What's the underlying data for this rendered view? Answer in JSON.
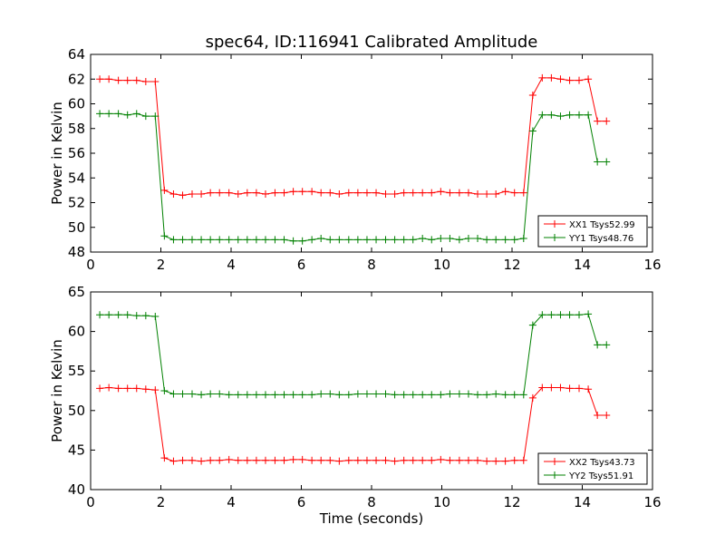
{
  "figure": {
    "title": "spec64, ID:116941 Calibrated Amplitude",
    "xlabel": "Time (seconds)"
  },
  "chart_data": [
    {
      "type": "line",
      "title": "spec64, ID:116941 Calibrated Amplitude",
      "xlabel": "",
      "ylabel": "Power in Kelvin",
      "xlim": [
        0,
        16
      ],
      "ylim": [
        48,
        64
      ],
      "xticks": [
        0,
        2,
        4,
        6,
        8,
        10,
        12,
        14,
        16
      ],
      "yticks": [
        48,
        50,
        52,
        54,
        56,
        58,
        60,
        62,
        64
      ],
      "grid": false,
      "legend_position": "lower-right",
      "x": [
        0.26,
        0.52,
        0.79,
        1.05,
        1.31,
        1.57,
        1.84,
        2.1,
        2.36,
        2.62,
        2.89,
        3.15,
        3.41,
        3.67,
        3.94,
        4.2,
        4.46,
        4.72,
        4.98,
        5.25,
        5.51,
        5.77,
        6.03,
        6.3,
        6.56,
        6.82,
        7.08,
        7.35,
        7.61,
        7.87,
        8.13,
        8.4,
        8.66,
        8.92,
        9.18,
        9.45,
        9.71,
        9.97,
        10.23,
        10.5,
        10.76,
        11.02,
        11.28,
        11.54,
        11.81,
        12.07,
        12.33,
        12.59,
        12.86,
        13.12,
        13.38,
        13.64,
        13.91,
        14.17,
        14.43,
        14.69
      ],
      "series": [
        {
          "name": "XX1 Tsys52.99",
          "color": "#ff0000",
          "values": [
            62.0,
            62.0,
            61.9,
            61.9,
            61.9,
            61.8,
            61.8,
            53.0,
            52.7,
            52.6,
            52.7,
            52.7,
            52.8,
            52.8,
            52.8,
            52.7,
            52.8,
            52.8,
            52.7,
            52.8,
            52.8,
            52.9,
            52.9,
            52.9,
            52.8,
            52.8,
            52.7,
            52.8,
            52.8,
            52.8,
            52.8,
            52.7,
            52.7,
            52.8,
            52.8,
            52.8,
            52.8,
            52.9,
            52.8,
            52.8,
            52.8,
            52.7,
            52.7,
            52.7,
            52.9,
            52.8,
            52.8,
            60.7,
            62.1,
            62.1,
            62.0,
            61.9,
            61.9,
            62.0,
            58.6,
            58.6
          ]
        },
        {
          "name": "YY1 Tsys48.76",
          "color": "#008000",
          "values": [
            59.2,
            59.2,
            59.2,
            59.1,
            59.2,
            59.0,
            59.0,
            49.3,
            49.0,
            49.0,
            49.0,
            49.0,
            49.0,
            49.0,
            49.0,
            49.0,
            49.0,
            49.0,
            49.0,
            49.0,
            49.0,
            48.9,
            48.9,
            49.0,
            49.1,
            49.0,
            49.0,
            49.0,
            49.0,
            49.0,
            49.0,
            49.0,
            49.0,
            49.0,
            49.0,
            49.1,
            49.0,
            49.1,
            49.1,
            49.0,
            49.1,
            49.1,
            49.0,
            49.0,
            49.0,
            49.0,
            49.1,
            57.8,
            59.1,
            59.1,
            59.0,
            59.1,
            59.1,
            59.1,
            55.3,
            55.3
          ]
        }
      ]
    },
    {
      "type": "line",
      "title": "",
      "xlabel": "Time (seconds)",
      "ylabel": "Power in Kelvin",
      "xlim": [
        0,
        16
      ],
      "ylim": [
        40,
        65
      ],
      "xticks": [
        0,
        2,
        4,
        6,
        8,
        10,
        12,
        14,
        16
      ],
      "yticks": [
        40,
        45,
        50,
        55,
        60,
        65
      ],
      "grid": false,
      "legend_position": "lower-right",
      "x": [
        0.26,
        0.52,
        0.79,
        1.05,
        1.31,
        1.57,
        1.84,
        2.1,
        2.36,
        2.62,
        2.89,
        3.15,
        3.41,
        3.67,
        3.94,
        4.2,
        4.46,
        4.72,
        4.98,
        5.25,
        5.51,
        5.77,
        6.03,
        6.3,
        6.56,
        6.82,
        7.08,
        7.35,
        7.61,
        7.87,
        8.13,
        8.4,
        8.66,
        8.92,
        9.18,
        9.45,
        9.71,
        9.97,
        10.23,
        10.5,
        10.76,
        11.02,
        11.28,
        11.54,
        11.81,
        12.07,
        12.33,
        12.59,
        12.86,
        13.12,
        13.38,
        13.64,
        13.91,
        14.17,
        14.43,
        14.69
      ],
      "series": [
        {
          "name": "XX2 Tsys43.73",
          "color": "#ff0000",
          "values": [
            52.8,
            52.9,
            52.8,
            52.8,
            52.8,
            52.7,
            52.6,
            44.0,
            43.6,
            43.7,
            43.7,
            43.6,
            43.7,
            43.7,
            43.8,
            43.7,
            43.7,
            43.7,
            43.7,
            43.7,
            43.7,
            43.8,
            43.8,
            43.7,
            43.7,
            43.7,
            43.6,
            43.7,
            43.7,
            43.7,
            43.7,
            43.7,
            43.6,
            43.7,
            43.7,
            43.7,
            43.7,
            43.8,
            43.7,
            43.7,
            43.7,
            43.7,
            43.6,
            43.6,
            43.6,
            43.7,
            43.7,
            51.6,
            52.9,
            52.9,
            52.9,
            52.8,
            52.8,
            52.7,
            49.4,
            49.4
          ]
        },
        {
          "name": "YY2 Tsys51.91",
          "color": "#008000",
          "values": [
            62.1,
            62.1,
            62.1,
            62.1,
            62.0,
            62.0,
            61.9,
            52.5,
            52.1,
            52.1,
            52.1,
            52.0,
            52.1,
            52.1,
            52.0,
            52.0,
            52.0,
            52.0,
            52.0,
            52.0,
            52.0,
            52.0,
            52.0,
            52.0,
            52.1,
            52.1,
            52.0,
            52.0,
            52.1,
            52.1,
            52.1,
            52.1,
            52.0,
            52.0,
            52.0,
            52.0,
            52.0,
            52.0,
            52.1,
            52.1,
            52.1,
            52.0,
            52.0,
            52.1,
            52.0,
            52.0,
            52.0,
            60.8,
            62.1,
            62.1,
            62.1,
            62.1,
            62.1,
            62.2,
            58.3,
            58.3
          ]
        }
      ]
    }
  ]
}
